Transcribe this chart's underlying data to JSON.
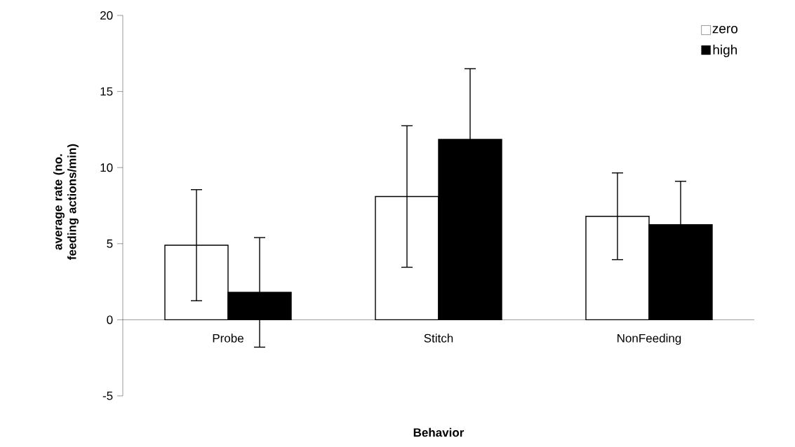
{
  "chart_data": {
    "type": "bar",
    "xlabel": "Behavior",
    "ylabel": "average rate (no. feeding actions/min)",
    "categories": [
      "Probe",
      "Stitch",
      "NonFeeding"
    ],
    "series": [
      {
        "name": "zero",
        "color": "#ffffff",
        "values": [
          4.9,
          8.1,
          6.8
        ],
        "errors": [
          3.65,
          4.65,
          2.85
        ]
      },
      {
        "name": "high",
        "color": "#000000",
        "values": [
          1.8,
          11.85,
          6.25
        ],
        "errors": [
          3.6,
          4.65,
          2.85
        ]
      }
    ],
    "ylim": [
      -5,
      20
    ],
    "yticks": [
      -5,
      0,
      5,
      10,
      15,
      20
    ],
    "legend": "top right",
    "grid": false
  }
}
